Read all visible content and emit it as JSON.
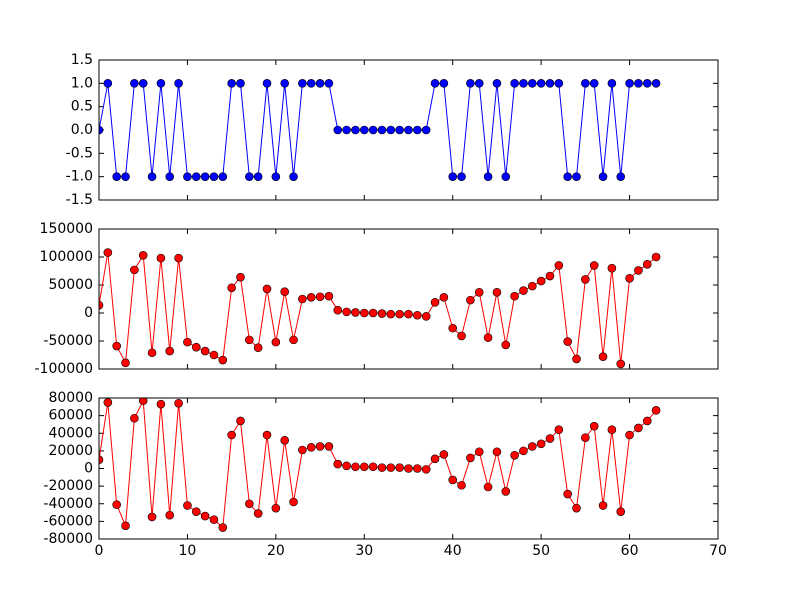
{
  "chart_data": [
    {
      "type": "line",
      "color": "#0000ff",
      "x": [
        0,
        1,
        2,
        3,
        4,
        5,
        6,
        7,
        8,
        9,
        10,
        11,
        12,
        13,
        14,
        15,
        16,
        17,
        18,
        19,
        20,
        21,
        22,
        23,
        24,
        25,
        26,
        27,
        28,
        29,
        30,
        31,
        32,
        33,
        34,
        35,
        36,
        37,
        38,
        39,
        40,
        41,
        42,
        43,
        44,
        45,
        46,
        47,
        48,
        49,
        50,
        51,
        52,
        53,
        54,
        55,
        56,
        57,
        58,
        59,
        60,
        61,
        62,
        63
      ],
      "values": [
        0,
        1,
        -1,
        -1,
        1,
        1,
        -1,
        1,
        -1,
        1,
        -1,
        -1,
        -1,
        -1,
        -1,
        1,
        1,
        -1,
        -1,
        1,
        -1,
        1,
        -1,
        1,
        1,
        1,
        1,
        0,
        0,
        0,
        0,
        0,
        0,
        0,
        0,
        0,
        0,
        0,
        1,
        1,
        -1,
        -1,
        1,
        1,
        -1,
        1,
        -1,
        1,
        1,
        1,
        1,
        1,
        1,
        -1,
        -1,
        1,
        1,
        -1,
        1,
        -1,
        1,
        1,
        1,
        1
      ],
      "xlim": [
        0,
        70
      ],
      "ylim": [
        -1.5,
        1.5
      ],
      "yticks": [
        -1.5,
        {
          "value": -1,
          "label": "-1.0"
        },
        -0.5,
        {
          "value": 0,
          "label": "0.0"
        },
        0.5,
        {
          "value": 1,
          "label": "1.0"
        },
        1.5
      ]
    },
    {
      "type": "line",
      "color": "#ff0000",
      "x": [
        0,
        1,
        2,
        3,
        4,
        5,
        6,
        7,
        8,
        9,
        10,
        11,
        12,
        13,
        14,
        15,
        16,
        17,
        18,
        19,
        20,
        21,
        22,
        23,
        24,
        25,
        26,
        27,
        28,
        29,
        30,
        31,
        32,
        33,
        34,
        35,
        36,
        37,
        38,
        39,
        40,
        41,
        42,
        43,
        44,
        45,
        46,
        47,
        48,
        49,
        50,
        51,
        52,
        53,
        54,
        55,
        56,
        57,
        58,
        59,
        60,
        61,
        62,
        63
      ],
      "values": [
        14000,
        108000,
        -59000,
        -89000,
        77000,
        103000,
        -71000,
        98000,
        -68000,
        98000,
        -52000,
        -61000,
        -68000,
        -75000,
        -84000,
        45000,
        64000,
        -48000,
        -62000,
        43000,
        -52000,
        38000,
        -48000,
        25000,
        28000,
        29000,
        30000,
        5000,
        2000,
        1000,
        0,
        0,
        -1000,
        -2000,
        -2000,
        -2000,
        -4000,
        -6000,
        19000,
        28000,
        -27000,
        -41000,
        23000,
        37000,
        -44000,
        37000,
        -57000,
        30000,
        40000,
        48000,
        57000,
        66000,
        85000,
        -51000,
        -82000,
        60000,
        85000,
        -78000,
        80000,
        -91000,
        62000,
        76000,
        87000,
        100000
      ],
      "xlim": [
        0,
        70
      ],
      "ylim": [
        -100000,
        150000
      ],
      "yticks": [
        -100000,
        -50000,
        0,
        50000,
        100000,
        150000
      ]
    },
    {
      "type": "line",
      "color": "#ff0000",
      "x": [
        0,
        1,
        2,
        3,
        4,
        5,
        6,
        7,
        8,
        9,
        10,
        11,
        12,
        13,
        14,
        15,
        16,
        17,
        18,
        19,
        20,
        21,
        22,
        23,
        24,
        25,
        26,
        27,
        28,
        29,
        30,
        31,
        32,
        33,
        34,
        35,
        36,
        37,
        38,
        39,
        40,
        41,
        42,
        43,
        44,
        45,
        46,
        47,
        48,
        49,
        50,
        51,
        52,
        53,
        54,
        55,
        56,
        57,
        58,
        59,
        60,
        61,
        62,
        63
      ],
      "values": [
        10000,
        75000,
        -41000,
        -65000,
        57000,
        77000,
        -55000,
        73000,
        -53000,
        74000,
        -42000,
        -49000,
        -54000,
        -58000,
        -67000,
        38000,
        54000,
        -40000,
        -51000,
        38000,
        -45000,
        32000,
        -38000,
        21000,
        24000,
        25000,
        25000,
        5000,
        3000,
        2000,
        2000,
        2000,
        1000,
        1000,
        1000,
        0,
        0,
        -1000,
        11000,
        16000,
        -13000,
        -19000,
        12000,
        19000,
        -21000,
        19000,
        -26000,
        15000,
        20000,
        25000,
        28000,
        34000,
        44000,
        -29000,
        -45000,
        35000,
        48000,
        -42000,
        44000,
        -49000,
        38000,
        46000,
        54000,
        66000
      ],
      "xlim": [
        0,
        70
      ],
      "ylim": [
        -80000,
        80000
      ],
      "yticks": [
        -80000,
        -60000,
        -40000,
        -20000,
        0,
        20000,
        40000,
        60000,
        80000
      ],
      "xticks": [
        0,
        10,
        20,
        30,
        40,
        50,
        60,
        70
      ]
    }
  ]
}
